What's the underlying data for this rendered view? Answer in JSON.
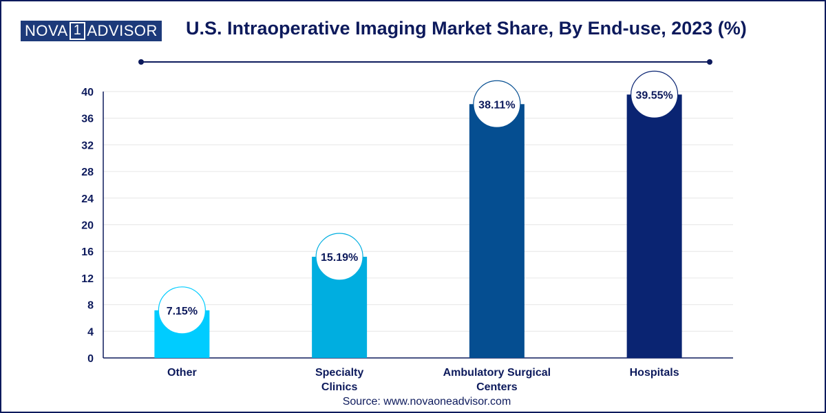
{
  "brand": {
    "logo_left": "NOVA",
    "logo_mid": "1",
    "logo_right": "ADVISOR"
  },
  "header": {
    "title": "U.S. Intraoperative Imaging Market Share, By End-use, 2023 (%)"
  },
  "source": "Source: www.novaoneadvisor.com",
  "colors": {
    "text": "#0d1a5c",
    "grid": "#e6e6e6",
    "axis": "#0d1a5c"
  },
  "chart_data": {
    "type": "bar",
    "title": "U.S. Intraoperative Imaging Market Share, By End-use, 2023 (%)",
    "xlabel": "",
    "ylabel": "",
    "ylim": [
      0,
      40
    ],
    "yticks": [
      0,
      4,
      8,
      12,
      16,
      20,
      24,
      28,
      32,
      36,
      40
    ],
    "grid": true,
    "categories": [
      "Other",
      "Specialty\nClinics",
      "Ambulatory Surgical\nCenters",
      "Hospitals"
    ],
    "values": [
      7.15,
      15.19,
      38.11,
      39.55
    ],
    "data_labels": [
      "7.15%",
      "15.19%",
      "38.11%",
      "39.55%"
    ],
    "bar_colors": [
      "#00ccff",
      "#00aee0",
      "#054e91",
      "#0a2472"
    ]
  }
}
